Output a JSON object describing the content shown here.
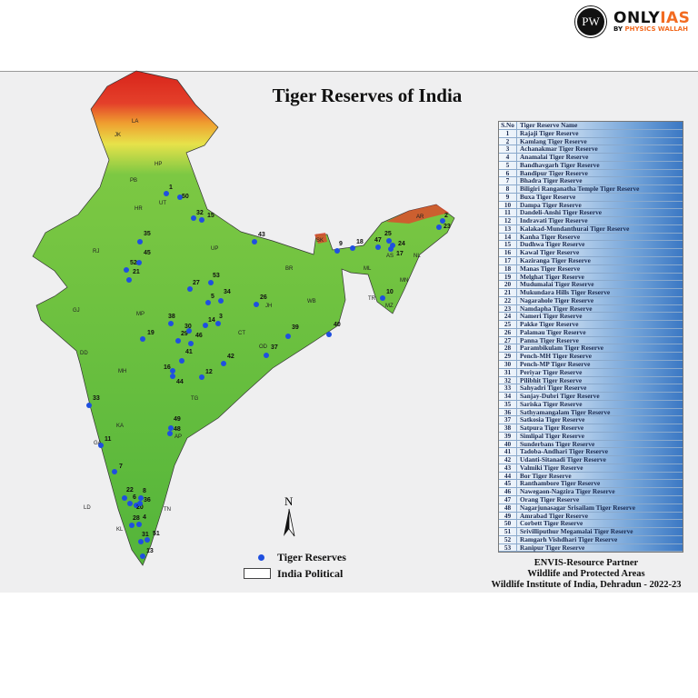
{
  "logo": {
    "mark": "PW",
    "brand_main": "ONLY",
    "brand_accent": "IAS",
    "by": "BY",
    "by_accent": "PHYSICS WALLAH"
  },
  "title": "Tiger Reserves of India",
  "table": {
    "headers": [
      "S.No",
      "Tiger Reserve Name"
    ],
    "rows": [
      [
        "1",
        "Rajaji Tiger Reserve"
      ],
      [
        "2",
        "Kamlang Tiger Reserve"
      ],
      [
        "3",
        "Achanakmar Tiger Reserve"
      ],
      [
        "4",
        "Anamalai Tiger Reserve"
      ],
      [
        "5",
        "Bandhavgarh Tiger Reserve"
      ],
      [
        "6",
        "Bandipur Tiger Reserve"
      ],
      [
        "7",
        "Bhadra Tiger Reserve"
      ],
      [
        "8",
        "Biligiri Ranganatha Temple Tiger Reserve"
      ],
      [
        "9",
        "Buxa Tiger Reserve"
      ],
      [
        "10",
        "Dampa Tiger Reserve"
      ],
      [
        "11",
        "Dandeli-Anshi Tiger Reserve"
      ],
      [
        "12",
        "Indravati Tiger Reserve"
      ],
      [
        "13",
        "Kalakad-Mundanthurai Tiger Reserve"
      ],
      [
        "14",
        "Kanha Tiger Reserve"
      ],
      [
        "15",
        "Dudhwa Tiger Reserve"
      ],
      [
        "16",
        "Kawal Tiger Reserve"
      ],
      [
        "17",
        "Kaziranga Tiger Reserve"
      ],
      [
        "18",
        "Manas Tiger Reserve"
      ],
      [
        "19",
        "Melghat Tiger Reserve"
      ],
      [
        "20",
        "Mudumalai Tiger Reserve"
      ],
      [
        "21",
        "Mukundara Hills Tiger Reserve"
      ],
      [
        "22",
        "Nagarahole Tiger Reserve"
      ],
      [
        "23",
        "Namdapha Tiger Reserve"
      ],
      [
        "24",
        "Nameri Tiger Reserve"
      ],
      [
        "25",
        "Pakke Tiger Reserve"
      ],
      [
        "26",
        "Palamau Tiger Reserve"
      ],
      [
        "27",
        "Panna Tiger Reserve"
      ],
      [
        "28",
        "Parambikulam Tiger Reserve"
      ],
      [
        "29",
        "Pench-MH Tiger Reserve"
      ],
      [
        "30",
        "Pench-MP Tiger Reserve"
      ],
      [
        "31",
        "Periyar Tiger Reserve"
      ],
      [
        "32",
        "Pilibhit Tiger Reserve"
      ],
      [
        "33",
        "Sahyadri Tiger Reserve"
      ],
      [
        "34",
        "Sanjay-Dubri Tiger Reserve"
      ],
      [
        "35",
        "Sariska Tiger Reserve"
      ],
      [
        "36",
        "Sathyamangalam Tiger Reserve"
      ],
      [
        "37",
        "Satkosia Tiger Reserve"
      ],
      [
        "38",
        "Satpura Tiger Reserve"
      ],
      [
        "39",
        "Simlipal Tiger Reserve"
      ],
      [
        "40",
        "Sunderbans Tiger Reserve"
      ],
      [
        "41",
        "Tadoba-Andhari Tiger Reserve"
      ],
      [
        "42",
        "Udanti-Sitanadi Tiger Reserve"
      ],
      [
        "43",
        "Valmiki Tiger Reserve"
      ],
      [
        "44",
        "Bor Tiger Reserve"
      ],
      [
        "45",
        "Ranthambore Tiger Reserve"
      ],
      [
        "46",
        "Nawegaon-Nagzira Tiger Reserve"
      ],
      [
        "47",
        "Orang Tiger Reserve"
      ],
      [
        "48",
        "Nagarjunasagar Srisailam Tiger Reserve"
      ],
      [
        "49",
        "Amrabad Tiger Reserve"
      ],
      [
        "50",
        "Corbett Tiger Reserve"
      ],
      [
        "51",
        "Srivilliputhur Megamalai Tiger Reserve"
      ],
      [
        "52",
        "Ramgarh Vishdhari Tiger Reserve"
      ],
      [
        "53",
        "Ranipur Tiger Reserve"
      ]
    ]
  },
  "states": [
    "LA",
    "JK",
    "HP",
    "PB",
    "UT",
    "HR",
    "RJ",
    "UP",
    "BR",
    "SK",
    "AR",
    "AS",
    "NL",
    "ML",
    "MN",
    "TR",
    "MZ",
    "WB",
    "JH",
    "GJ",
    "MP",
    "CT",
    "OD",
    "MH",
    "TG",
    "KA",
    "AP",
    "GA",
    "KL",
    "TN",
    "LD",
    "DD"
  ],
  "north_label": "N",
  "legend": {
    "reserves": "Tiger Reserves",
    "political": "India Political",
    "marker_color": "#1f4fe0"
  },
  "credits": [
    "ENVIS-Resource Partner",
    "Wildlife and Protected Areas",
    "Wildlife Institute of India, Dehradun - 2022-23"
  ]
}
